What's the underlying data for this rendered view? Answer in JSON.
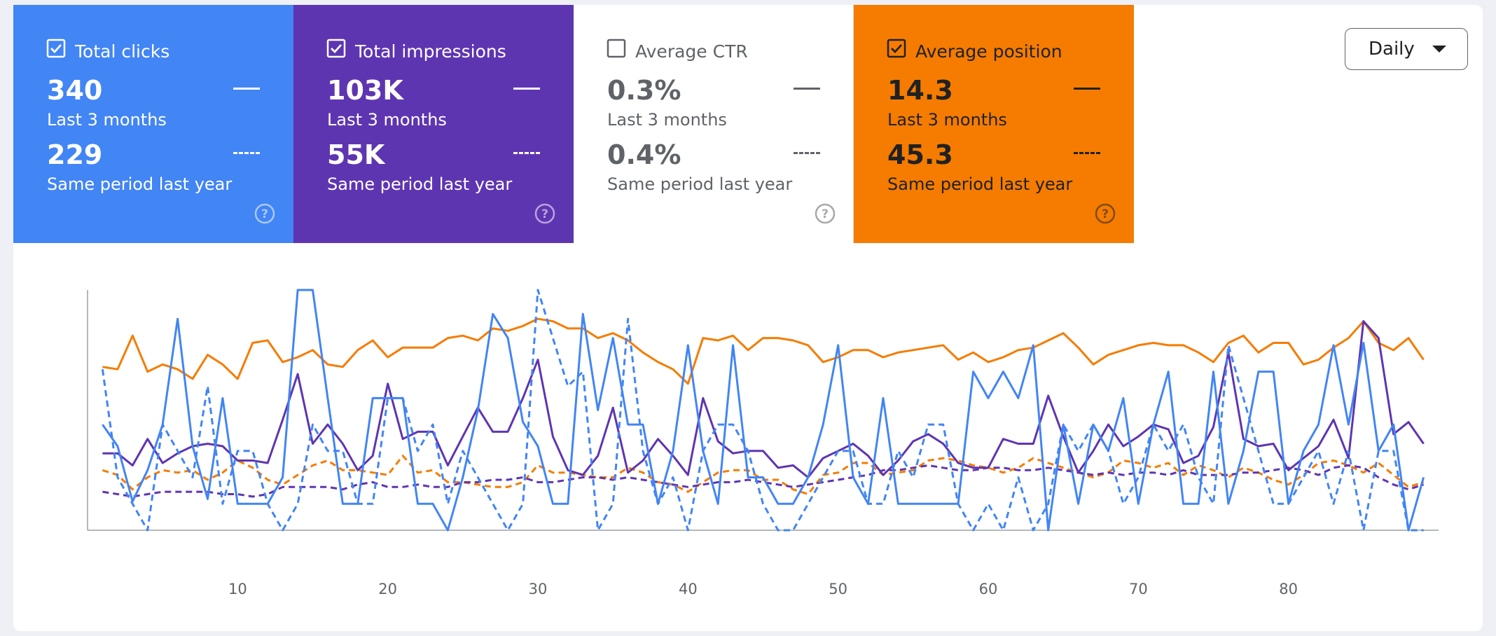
{
  "cards": [
    {
      "label": "Total clicks",
      "checked": true,
      "background": "#4285f4",
      "foreground": "#ffffff",
      "value": "340",
      "period": "Last 3 months",
      "previous_value": "229",
      "previous_period": "Same period last year"
    },
    {
      "label": "Total impressions",
      "checked": true,
      "background": "#5e35b1",
      "foreground": "#ffffff",
      "value": "103K",
      "period": "Last 3 months",
      "previous_value": "55K",
      "previous_period": "Same period last year"
    },
    {
      "label": "Average CTR",
      "checked": false,
      "background": "#ffffff",
      "foreground": "#5f6368",
      "value": "0.3%",
      "period": "Last 3 months",
      "previous_value": "0.4%",
      "previous_period": "Same period last year"
    },
    {
      "label": "Average position",
      "checked": true,
      "background": "#f57c00",
      "foreground": "#202124",
      "value": "14.3",
      "period": "Last 3 months",
      "previous_value": "45.3",
      "previous_period": "Same period last year"
    }
  ],
  "dropdown": {
    "label": "Daily"
  },
  "chart_data": {
    "type": "line",
    "x": [
      1,
      2,
      3,
      4,
      5,
      6,
      7,
      8,
      9,
      10,
      11,
      12,
      13,
      14,
      15,
      16,
      17,
      18,
      19,
      20,
      21,
      22,
      23,
      24,
      25,
      26,
      27,
      28,
      29,
      30,
      31,
      32,
      33,
      34,
      35,
      36,
      37,
      38,
      39,
      40,
      41,
      42,
      43,
      44,
      45,
      46,
      47,
      48,
      49,
      50,
      51,
      52,
      53,
      54,
      55,
      56,
      57,
      58,
      59,
      60,
      61,
      62,
      63,
      64,
      65,
      66,
      67,
      68,
      69,
      70,
      71,
      72,
      73,
      74,
      75,
      76,
      77,
      78,
      79,
      80,
      81,
      82,
      83,
      84,
      85,
      86,
      87,
      88,
      89
    ],
    "xlim": [
      0,
      90
    ],
    "xticks": [
      10,
      20,
      30,
      40,
      50,
      60,
      70,
      80
    ],
    "ylim": [
      0,
      100
    ],
    "series": [
      {
        "color": "#f57c00",
        "style": "solid",
        "values": [
          68,
          67,
          81,
          66,
          69,
          67,
          63,
          73,
          69,
          63,
          78,
          79,
          70,
          72,
          75,
          69,
          68,
          75,
          79,
          72,
          76,
          76,
          76,
          80,
          81,
          79,
          84,
          83,
          85,
          88,
          87,
          84,
          84,
          80,
          82,
          79,
          74,
          70,
          67,
          61,
          80,
          79,
          81,
          75,
          80,
          80,
          79,
          77,
          70,
          72,
          75,
          75,
          72,
          74,
          75,
          76,
          77,
          71,
          74,
          70,
          72,
          75,
          76,
          79,
          82,
          76,
          69,
          73,
          75,
          77,
          78,
          77,
          77,
          74,
          70,
          78,
          81,
          74,
          78,
          78,
          69,
          71,
          76,
          80,
          87,
          78,
          75,
          80,
          71
        ]
      },
      {
        "color": "#f57c00",
        "style": "dashed",
        "values": [
          25,
          23,
          17,
          22,
          25,
          24,
          25,
          21,
          24,
          29,
          26,
          21,
          19,
          23,
          27,
          29,
          25,
          25,
          24,
          23,
          31,
          24,
          25,
          20,
          20,
          19,
          18,
          18,
          20,
          27,
          24,
          24,
          23,
          22,
          22,
          26,
          24,
          20,
          19,
          16,
          20,
          24,
          25,
          25,
          21,
          21,
          17,
          15,
          23,
          24,
          28,
          28,
          23,
          24,
          25,
          29,
          30,
          29,
          27,
          26,
          24,
          26,
          30,
          28,
          26,
          24,
          22,
          24,
          29,
          28,
          26,
          28,
          23,
          27,
          25,
          22,
          26,
          24,
          21,
          19,
          23,
          28,
          29,
          27,
          24,
          28,
          23,
          18,
          20
        ]
      },
      {
        "color": "#5e35b1",
        "style": "solid",
        "values": [
          32,
          32,
          27,
          38,
          28,
          32,
          35,
          36,
          35,
          29,
          29,
          28,
          46,
          65,
          36,
          44,
          36,
          25,
          31,
          61,
          38,
          41,
          41,
          27,
          39,
          51,
          41,
          41,
          55,
          71,
          39,
          25,
          23,
          31,
          51,
          24,
          29,
          38,
          31,
          23,
          55,
          37,
          32,
          33,
          33,
          26,
          27,
          22,
          30,
          33,
          36,
          31,
          23,
          29,
          37,
          40,
          36,
          28,
          26,
          26,
          38,
          36,
          36,
          56,
          39,
          24,
          33,
          44,
          35,
          39,
          44,
          42,
          28,
          31,
          43,
          74,
          38,
          35,
          36,
          25,
          30,
          35,
          46,
          30,
          87,
          80,
          40,
          45,
          36
        ]
      },
      {
        "color": "#5e35b1",
        "style": "dashed",
        "values": [
          16,
          15,
          14,
          15,
          16,
          16,
          16,
          16,
          15,
          15,
          14,
          15,
          18,
          18,
          18,
          18,
          17,
          19,
          20,
          18,
          18,
          19,
          18,
          18,
          20,
          20,
          21,
          21,
          22,
          20,
          20,
          21,
          22,
          22,
          21,
          22,
          21,
          20,
          19,
          18,
          19,
          20,
          20,
          21,
          20,
          19,
          18,
          19,
          20,
          21,
          22,
          23,
          25,
          25,
          26,
          27,
          26,
          25,
          25,
          26,
          26,
          25,
          25,
          26,
          25,
          24,
          23,
          24,
          23,
          24,
          24,
          23,
          25,
          23,
          23,
          23,
          24,
          24,
          25,
          26,
          25,
          23,
          26,
          27,
          26,
          22,
          19,
          17,
          19
        ]
      },
      {
        "color": "#4285f4",
        "style": "solid",
        "values": [
          44,
          35,
          12,
          25,
          44,
          88,
          35,
          13,
          55,
          11,
          11,
          11,
          22,
          100,
          100,
          55,
          11,
          11,
          55,
          55,
          55,
          11,
          11,
          0,
          22,
          50,
          90,
          80,
          45,
          35,
          11,
          11,
          90,
          50,
          80,
          44,
          44,
          11,
          33,
          77,
          33,
          11,
          77,
          22,
          22,
          11,
          11,
          22,
          44,
          77,
          22,
          11,
          55,
          11,
          11,
          11,
          11,
          11,
          66,
          55,
          66,
          55,
          77,
          0,
          44,
          11,
          44,
          33,
          55,
          11,
          44,
          66,
          11,
          11,
          66,
          11,
          33,
          66,
          66,
          11,
          33,
          44,
          77,
          44,
          78,
          33,
          44,
          0,
          22
        ]
      },
      {
        "color": "#4285f4",
        "style": "dashed",
        "values": [
          67,
          22,
          11,
          0,
          44,
          33,
          22,
          60,
          11,
          33,
          33,
          11,
          0,
          11,
          44,
          33,
          33,
          11,
          11,
          55,
          55,
          33,
          44,
          11,
          33,
          22,
          11,
          0,
          11,
          100,
          80,
          60,
          66,
          0,
          11,
          88,
          33,
          11,
          22,
          0,
          33,
          44,
          44,
          33,
          11,
          0,
          0,
          11,
          22,
          33,
          33,
          11,
          11,
          33,
          22,
          44,
          44,
          11,
          0,
          11,
          0,
          22,
          0,
          11,
          44,
          33,
          44,
          33,
          11,
          22,
          44,
          33,
          44,
          22,
          11,
          77,
          55,
          33,
          11,
          11,
          22,
          33,
          11,
          33,
          0,
          33,
          33,
          0,
          0
        ]
      }
    ]
  }
}
